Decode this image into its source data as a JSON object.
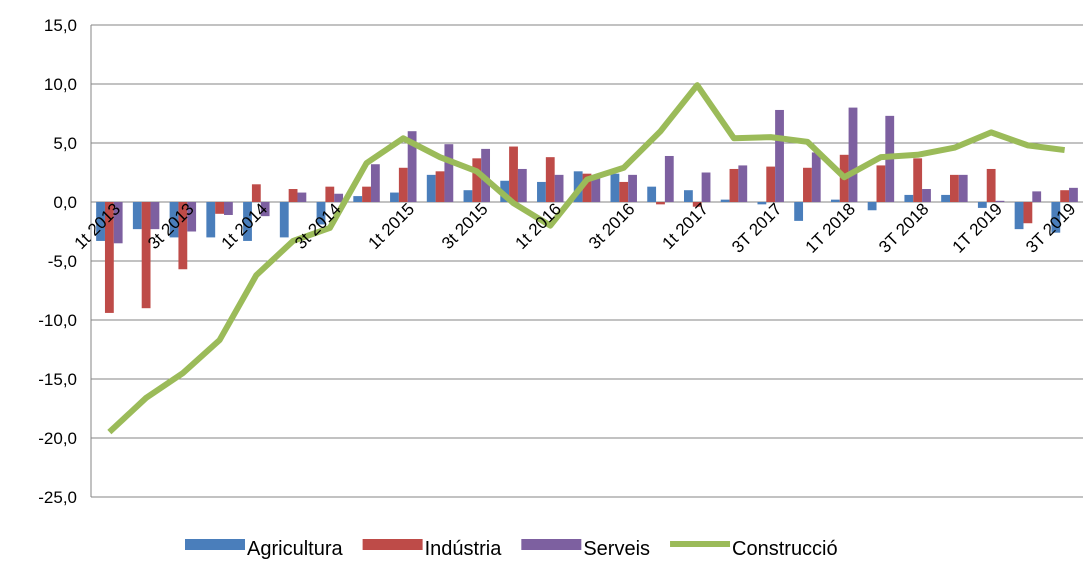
{
  "chart_data": {
    "type": "bar-line",
    "categories": [
      "1t 2013",
      null,
      "3t 2013",
      null,
      "1t 2014",
      null,
      "3t 2014",
      null,
      "1t 2015",
      null,
      "3t 2015",
      null,
      "1t 2016",
      null,
      "3t 2016",
      null,
      "1t 2017",
      null,
      "3T 2017",
      null,
      "1T 2018",
      null,
      "3T 2018",
      null,
      "1T 2019",
      null,
      "3T 2019"
    ],
    "series": [
      {
        "name": "Agricultura",
        "type": "bar",
        "color": "#4a7ebb",
        "values": [
          -3.3,
          -2.3,
          -3.0,
          -3.0,
          -3.3,
          -3.0,
          -1.9,
          0.5,
          0.8,
          2.3,
          1.0,
          1.8,
          1.7,
          2.6,
          2.4,
          1.3,
          1.0,
          0.2,
          -0.2,
          -1.6,
          0.2,
          -0.7,
          0.6,
          0.6,
          -0.5,
          -2.3,
          -2.6
        ]
      },
      {
        "name": "Indústria",
        "type": "bar",
        "color": "#be4b48",
        "values": [
          -9.4,
          -9.0,
          -5.7,
          -1.0,
          1.5,
          1.1,
          1.3,
          1.3,
          2.9,
          2.6,
          3.7,
          4.7,
          3.8,
          2.4,
          1.7,
          -0.2,
          -0.4,
          2.8,
          3.0,
          2.9,
          4.0,
          3.1,
          3.7,
          2.3,
          2.8,
          -1.8,
          1.0
        ]
      },
      {
        "name": "Serveis",
        "type": "bar",
        "color": "#7d60a0",
        "values": [
          -3.5,
          -2.3,
          -2.5,
          -1.1,
          -1.2,
          0.8,
          0.7,
          3.2,
          6.0,
          4.9,
          4.5,
          2.8,
          2.3,
          2.2,
          2.3,
          3.9,
          2.5,
          3.1,
          7.8,
          4.2,
          8.0,
          7.3,
          1.1,
          2.3,
          0.1,
          0.9,
          1.2
        ]
      },
      {
        "name": "Construcció",
        "type": "line",
        "color": "#9bbb59",
        "values": [
          -19.5,
          -16.6,
          -14.5,
          -11.7,
          -6.2,
          -3.3,
          -2.2,
          3.3,
          5.4,
          3.8,
          2.6,
          -0.1,
          -2.0,
          1.9,
          2.9,
          6.0,
          9.9,
          5.4,
          5.5,
          5.1,
          2.1,
          3.8,
          4.0,
          4.6,
          5.9,
          4.8,
          4.4
        ]
      }
    ],
    "ylim": [
      -25,
      15
    ],
    "yticks": [
      {
        "value": -25,
        "label": "-25,0"
      },
      {
        "value": -20,
        "label": "-20,0"
      },
      {
        "value": -15,
        "label": "-15,0"
      },
      {
        "value": -10,
        "label": "-10,0"
      },
      {
        "value": -5,
        "label": "-5,0"
      },
      {
        "value": 0,
        "label": "0,0"
      },
      {
        "value": 5,
        "label": "5,0"
      },
      {
        "value": 10,
        "label": "10,0"
      },
      {
        "value": 15,
        "label": "15,0"
      }
    ],
    "grid": true,
    "legend": "bottom"
  }
}
